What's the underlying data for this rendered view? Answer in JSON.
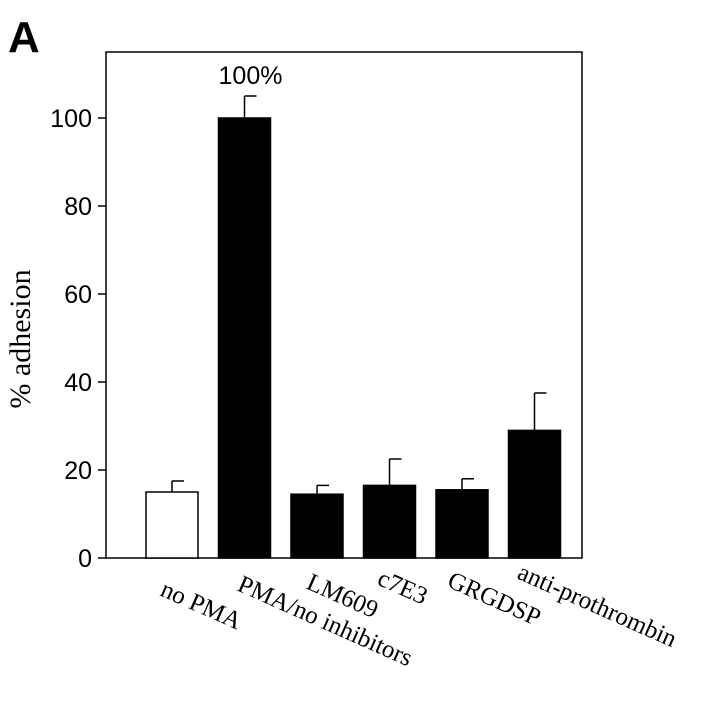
{
  "chart_data": {
    "type": "bar",
    "panel_label": "A",
    "categories": [
      "no PMA",
      "PMA/no inhibitors",
      "LM609",
      "c7E3",
      "GRGDSP",
      "anti-prothrombin"
    ],
    "values": [
      15,
      100,
      14.5,
      16.5,
      15.5,
      29
    ],
    "errors": [
      2.5,
      5,
      2,
      6,
      2.5,
      8.5
    ],
    "bar_fills": [
      "#ffffff",
      "#000000",
      "#000000",
      "#000000",
      "#000000",
      "#000000"
    ],
    "data_labels": [
      "",
      "100%",
      "",
      "",
      "",
      ""
    ],
    "xlabel": "",
    "ylabel": "% adhesion",
    "ylim": [
      0,
      115
    ],
    "yticks": [
      0,
      20,
      40,
      60,
      80,
      100
    ],
    "grid": false,
    "legend": "none"
  }
}
